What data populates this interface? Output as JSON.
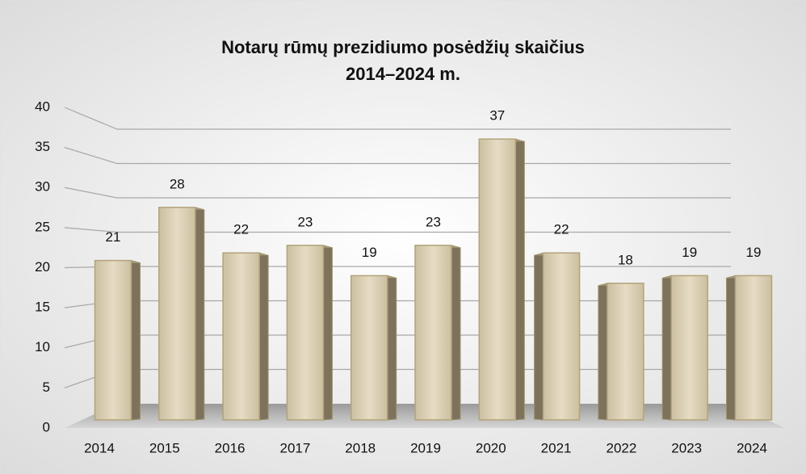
{
  "chart_data": {
    "type": "bar3d",
    "title": [
      "Notarų rūmų prezidiumo posėdžių skaičius",
      "2014–2024 m."
    ],
    "categories": [
      "2014",
      "2015",
      "2016",
      "2017",
      "2018",
      "2019",
      "2020",
      "2021",
      "2022",
      "2023",
      "2024"
    ],
    "values": [
      21,
      28,
      22,
      23,
      19,
      23,
      37,
      22,
      18,
      19,
      19
    ],
    "color": "#d8cdb2",
    "ylim": [
      0,
      40
    ],
    "yticks": [
      0,
      5,
      10,
      15,
      20,
      25,
      30,
      35,
      40
    ],
    "grid": true
  }
}
